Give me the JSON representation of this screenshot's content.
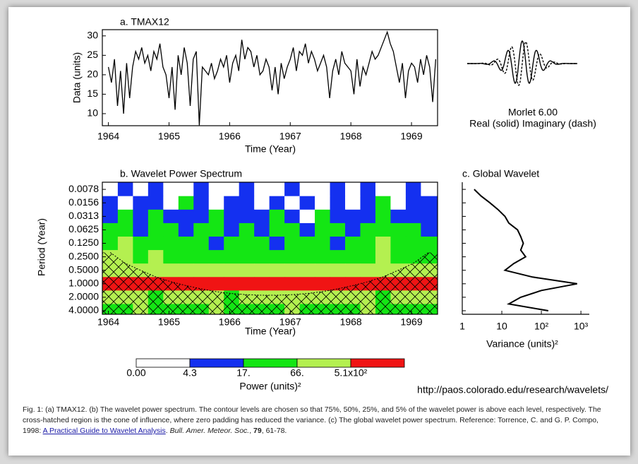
{
  "chart_data": [
    {
      "type": "line",
      "title": "a. TMAX12",
      "ylabel": "Data (units)",
      "xlabel": "Time (Year)",
      "color": "#000000",
      "x": [
        1964,
        1964.05,
        1964.1,
        1964.15,
        1964.2,
        1964.25,
        1964.3,
        1964.35,
        1964.4,
        1964.45,
        1964.5,
        1964.55,
        1964.6,
        1964.65,
        1964.7,
        1964.75,
        1964.8,
        1964.85,
        1964.9,
        1964.95,
        1965,
        1965.05,
        1965.1,
        1965.15,
        1965.2,
        1965.25,
        1965.3,
        1965.35,
        1965.4,
        1965.45,
        1965.5,
        1965.55,
        1965.6,
        1965.65,
        1965.7,
        1965.75,
        1965.8,
        1965.85,
        1965.9,
        1965.95,
        1966,
        1966.05,
        1966.1,
        1966.15,
        1966.2,
        1966.25,
        1966.3,
        1966.35,
        1966.4,
        1966.45,
        1966.5,
        1966.55,
        1966.6,
        1966.65,
        1966.7,
        1966.75,
        1966.8,
        1966.85,
        1966.9,
        1966.95,
        1967,
        1967.05,
        1967.1,
        1967.15,
        1967.2,
        1967.25,
        1967.3,
        1967.35,
        1967.4,
        1967.45,
        1967.5,
        1967.55,
        1967.6,
        1967.65,
        1967.7,
        1967.75,
        1967.8,
        1967.85,
        1967.9,
        1967.95,
        1968,
        1968.05,
        1968.1,
        1968.15,
        1968.2,
        1968.25,
        1968.3,
        1968.35,
        1968.4,
        1968.45,
        1968.5,
        1968.55,
        1968.6,
        1968.65,
        1968.7,
        1968.75,
        1968.8,
        1968.85,
        1968.9,
        1968.95,
        1969,
        1969.05,
        1969.1,
        1969.15,
        1969.2,
        1969.25,
        1969.3,
        1969.35,
        1969.4
      ],
      "values": [
        22,
        18,
        24,
        12,
        21,
        10,
        23,
        14,
        22,
        26,
        24,
        27,
        23,
        25,
        21,
        26,
        24,
        28,
        22,
        20,
        14,
        22,
        11,
        25,
        20,
        27,
        23,
        12,
        24,
        26,
        7,
        22,
        21,
        20,
        23,
        19,
        21,
        24,
        22,
        25,
        18,
        23,
        25,
        21,
        29,
        24,
        27,
        26,
        22,
        25,
        20,
        21,
        24,
        22,
        16,
        22,
        15,
        23,
        19,
        22,
        24,
        27,
        21,
        26,
        25,
        28,
        23,
        26,
        24,
        21,
        23,
        25,
        22,
        14,
        21,
        24,
        20,
        26,
        23,
        22,
        21,
        15,
        24,
        17,
        22,
        20,
        23,
        26,
        24,
        25,
        27,
        29,
        31,
        28,
        26,
        22,
        18,
        23,
        14,
        21,
        23,
        22,
        18,
        24,
        20,
        25,
        22,
        13,
        24
      ],
      "xlim": [
        1963.9,
        1969.43
      ],
      "xticks": [
        1964,
        1965,
        1966,
        1967,
        1968,
        1969
      ],
      "ylim": [
        6.9,
        31.6
      ],
      "yticks": [
        10,
        15,
        20,
        25,
        30
      ]
    },
    {
      "type": "heatmap",
      "title": "b. Wavelet Power Spectrum",
      "ylabel": "Period (Year)",
      "xlabel": "Time (Year)",
      "x": [
        1964.03,
        1964.28,
        1964.53,
        1964.78,
        1965.03,
        1965.28,
        1965.53,
        1965.78,
        1966.03,
        1966.28,
        1966.53,
        1966.78,
        1967.03,
        1967.28,
        1967.53,
        1967.78,
        1968.03,
        1968.28,
        1968.53,
        1968.78,
        1969.03,
        1969.28
      ],
      "y": [
        0.0078,
        0.0156,
        0.0313,
        0.0625,
        0.125,
        0.25,
        0.5,
        1.0,
        2.0,
        4.0
      ],
      "z": [
        [
          3,
          8,
          2,
          10,
          3,
          2,
          9,
          3,
          1,
          12,
          3,
          2,
          8,
          2,
          3,
          10,
          2,
          9,
          3,
          2,
          11,
          3
        ],
        [
          9,
          3,
          12,
          5,
          2,
          20,
          8,
          3,
          10,
          6,
          2,
          9,
          4,
          12,
          3,
          8,
          2,
          10,
          25,
          3,
          9,
          6
        ],
        [
          10,
          25,
          8,
          30,
          6,
          12,
          9,
          22,
          5,
          10,
          7,
          28,
          9,
          4,
          20,
          8,
          6,
          12,
          30,
          9,
          10,
          8
        ],
        [
          20,
          40,
          12,
          35,
          30,
          10,
          45,
          20,
          14,
          30,
          12,
          25,
          40,
          10,
          22,
          35,
          12,
          30,
          20,
          45,
          18,
          12
        ],
        [
          40,
          80,
          30,
          25,
          60,
          20,
          30,
          12,
          25,
          50,
          20,
          8,
          35,
          25,
          30,
          15,
          40,
          20,
          70,
          30,
          25,
          20
        ],
        [
          90,
          120,
          60,
          80,
          40,
          30,
          60,
          40,
          50,
          35,
          45,
          50,
          40,
          30,
          60,
          45,
          30,
          50,
          80,
          60,
          40,
          30
        ],
        [
          150,
          200,
          120,
          90,
          80,
          100,
          70,
          90,
          120,
          80,
          100,
          70,
          90,
          110,
          80,
          120,
          100,
          90,
          150,
          130,
          110,
          90
        ],
        [
          1500,
          2000,
          2500,
          2200,
          2000,
          1800,
          2100,
          2300,
          2000,
          1900,
          2200,
          2400,
          2000,
          2100,
          1900,
          2200,
          2300,
          2000,
          1800,
          2000,
          2200,
          1600
        ],
        [
          80,
          120,
          90,
          60,
          150,
          100,
          70,
          80,
          60,
          90,
          120,
          150,
          100,
          80,
          70,
          90,
          110,
          80,
          60,
          70,
          90,
          80
        ],
        [
          30,
          50,
          70,
          40,
          30,
          20,
          50,
          80,
          60,
          40,
          30,
          50,
          70,
          40,
          30,
          20,
          60,
          80,
          50,
          40,
          30,
          20
        ]
      ],
      "coi": [
        0.2,
        0.35,
        0.5,
        0.7,
        0.9,
        1.1,
        1.3,
        1.5,
        1.65,
        1.75,
        1.8,
        1.8,
        1.75,
        1.65,
        1.5,
        1.3,
        1.1,
        0.9,
        0.7,
        0.5,
        0.35,
        0.2
      ],
      "xlim": [
        1963.9,
        1969.43
      ],
      "xticks": [
        1964,
        1965,
        1966,
        1967,
        1968,
        1969
      ],
      "ylim": [
        0.0054,
        4.8
      ],
      "log_y": true,
      "yticks": [
        0.0078,
        0.0156,
        0.0313,
        0.0625,
        {
          "value": 0.125,
          "label": "0.1250"
        },
        {
          "value": 0.25,
          "label": "0.2500"
        },
        {
          "value": 0.5,
          "label": "0.5000"
        },
        {
          "value": 1,
          "label": "1.0000"
        },
        {
          "value": 2,
          "label": "2.0000"
        },
        {
          "value": 4,
          "label": "4.0000"
        }
      ],
      "levels": [
        {
          "value": 0,
          "label": "0.00"
        },
        4.3,
        {
          "value": 17,
          "label": "17."
        },
        {
          "value": 66,
          "label": "66."
        },
        {
          "value": 510,
          "label": "5.1x10²"
        }
      ],
      "level_colors": [
        "#ffffff",
        "#1430f0",
        "#14e614",
        "#b4f050",
        "#f01414"
      ],
      "colorbar_label": "Power (units)²"
    },
    {
      "type": "line",
      "title": "c. Global Wavelet",
      "xlabel": "Variance (units)²",
      "color": "#000000",
      "y": [
        0.0078,
        0.011,
        0.0156,
        0.022,
        0.0313,
        0.044,
        0.0625,
        0.088,
        0.125,
        0.177,
        0.25,
        0.354,
        0.5,
        0.707,
        1.0,
        1.41,
        2.0,
        2.83,
        4.0
      ],
      "values": [
        2,
        3,
        5,
        8,
        12,
        15,
        25,
        30,
        35,
        30,
        40,
        20,
        12,
        60,
        800,
        100,
        30,
        15,
        150
      ],
      "xlim": [
        1,
        1630
      ],
      "log_x": true,
      "xticks": [
        1,
        10,
        {
          "value": 100,
          "label": "10²"
        },
        {
          "value": 1000,
          "label": "10³"
        }
      ]
    }
  ],
  "morlet": {
    "title": "Morlet 6.00",
    "subtitle": "Real (solid)  Imaginary (dash)"
  },
  "url": "http://paos.colorado.edu/research/wavelets/",
  "caption": {
    "parts": [
      "Fig. 1: (a) TMAX12. (b) The wavelet power spectrum. The contour levels are chosen so that 75%, 50%, 25%, and 5% of the wavelet power is above each level, respectively. The cross-hatched region is the cone of influence, where zero padding has reduced the variance. (c) The global wavelet power spectrum. Reference: Torrence, C. and G. P. Compo, 1998: ",
      "A Practical Guide to Wavelet Analysis",
      ". ",
      "Bull. Amer. Meteor. Soc.",
      ", ",
      "79",
      ", 61-78."
    ]
  }
}
